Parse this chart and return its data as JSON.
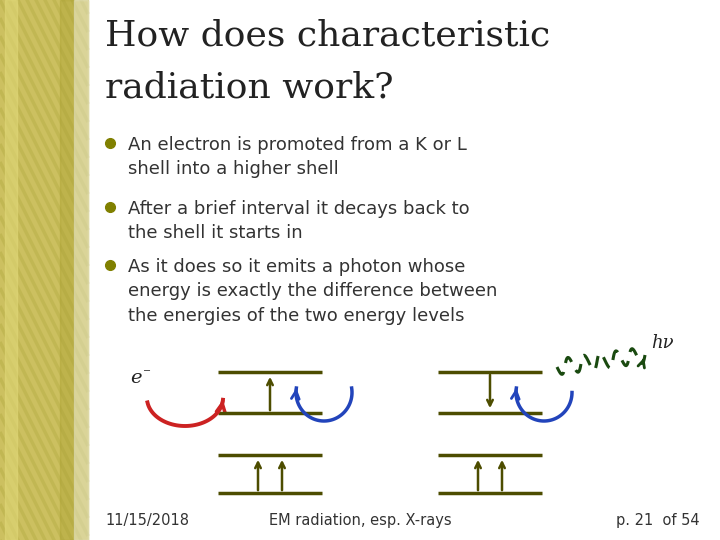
{
  "title_line1": "How does characteristic",
  "title_line2": "radiation work?",
  "title_fontsize": 26,
  "title_color": "#222222",
  "bullet_color": "#808000",
  "bullet_text_color": "#333333",
  "bullet_fontsize": 13,
  "bullets": [
    "An electron is promoted from a K or L\nshell into a higher shell",
    "After a brief interval it decays back to\nthe shell it starts in",
    "As it does so it emits a photon whose\nenergy is exactly the difference between\nthe energies of the two energy levels"
  ],
  "footer_left": "11/15/2018",
  "footer_center": "EM radiation, esp. X-rays",
  "footer_right": "p. 21  of 54",
  "footer_fontsize": 10.5,
  "background_color": "#ffffff",
  "diagram_line_color": "#4d4d00",
  "arrow_blue": "#2244bb",
  "arrow_red": "#cc2222",
  "arrow_green_dashed": "#1a4a10",
  "gold_base": "#ccc060",
  "gold_light": "#e0d878",
  "gold_dark": "#aaa030",
  "gold_stripe": "#b8b048"
}
